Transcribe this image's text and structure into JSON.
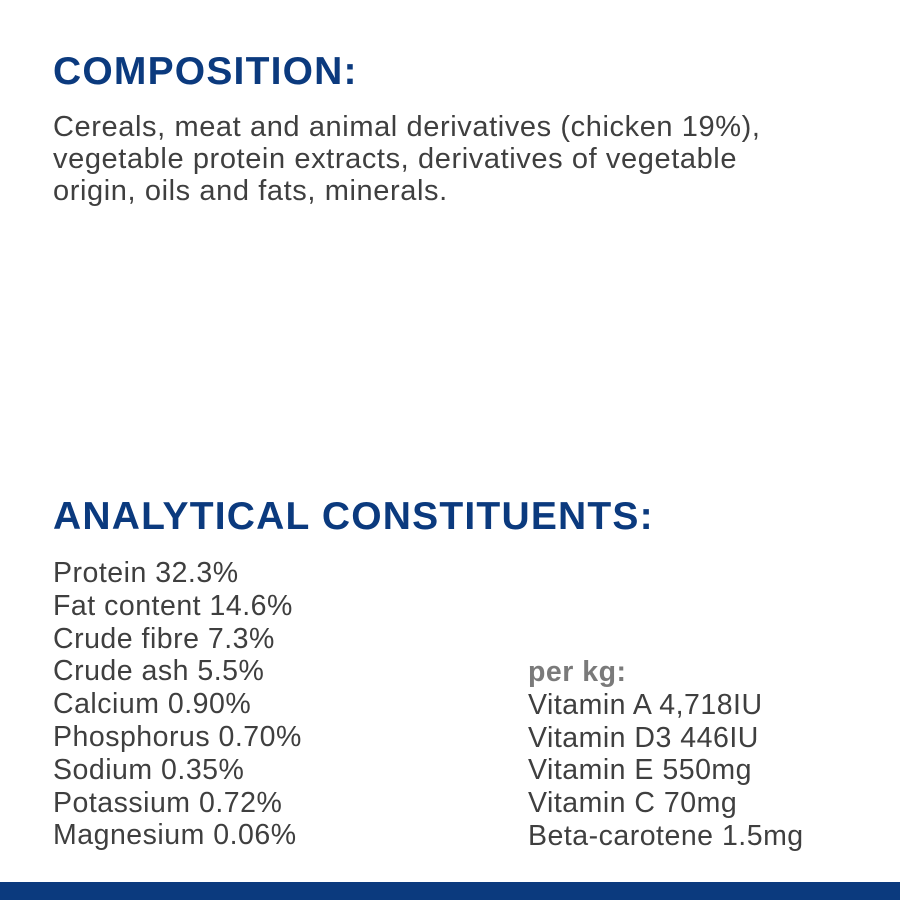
{
  "composition": {
    "heading": "COMPOSITION:",
    "lines": [
      "Cereals, meat and animal derivatives (chicken 19%),",
      "vegetable protein extracts, derivatives of vegetable",
      "origin, oils and fats, minerals."
    ]
  },
  "analytical": {
    "heading": "ANALYTICAL CONSTITUENTS:",
    "constituents": [
      "Protein 32.3%",
      "Fat content 14.6%",
      "Crude fibre 7.3%",
      "Crude ash 5.5%",
      "Calcium 0.90%",
      "Phosphorus 0.70%",
      "Sodium 0.35%",
      "Potassium 0.72%",
      "Magnesium 0.06%"
    ],
    "per_kg_label": "per kg:",
    "per_kg": [
      "Vitamin A 4,718IU",
      "Vitamin D3 446IU",
      "Vitamin E 550mg",
      "Vitamin C 70mg",
      "Beta-carotene 1.5mg"
    ]
  },
  "colors": {
    "heading": "#0b3a7e",
    "text": "#3f3f3f",
    "subheading": "#7a7a7a",
    "footer_bar": "#0b3a7e"
  }
}
